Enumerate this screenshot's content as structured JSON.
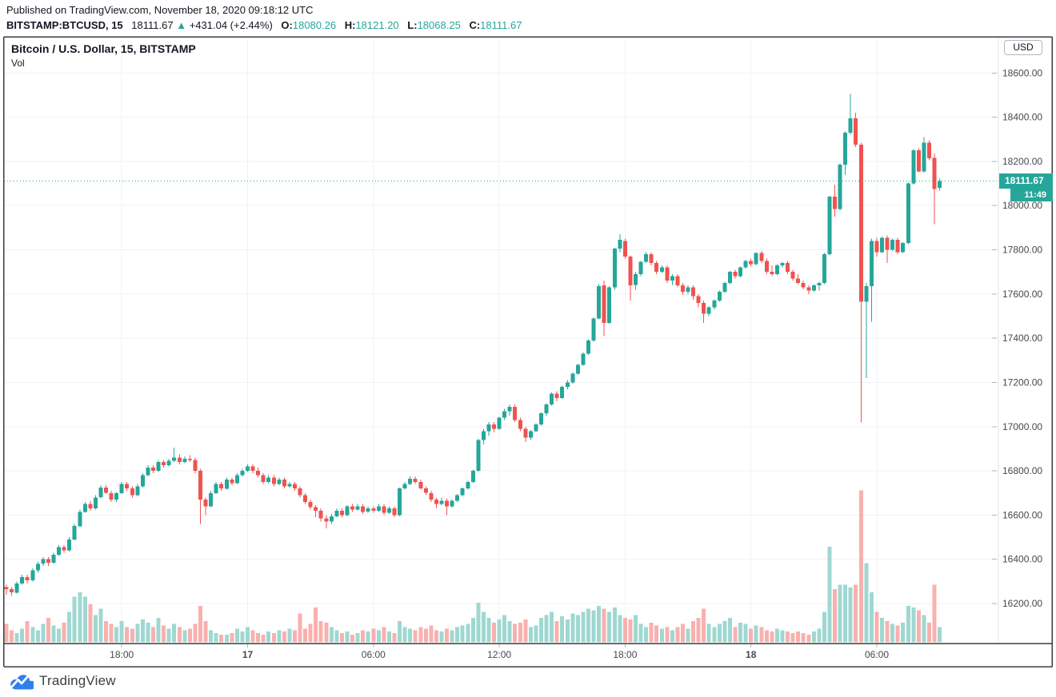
{
  "header": {
    "published": "Published on TradingView.com, November 18, 2020 09:18:12 UTC",
    "quote": {
      "symbol": "BITSTAMP:BTCUSD, 15",
      "last": "18111.67",
      "arrow": "▲",
      "change": "+431.04 (+2.44%)",
      "o_label": "O:",
      "o": "18080.26",
      "h_label": "H:",
      "h": "18121.20",
      "l_label": "L:",
      "l": "18068.25",
      "c_label": "C:",
      "c": "18111.67"
    }
  },
  "chart": {
    "title": "Bitcoin / U.S. Dollar, 15, BITSTAMP",
    "indicator_label": "Vol",
    "currency_badge": "USD",
    "price_label": "18111.67",
    "countdown": "11:49"
  },
  "footer": {
    "logo_text": "TradingView"
  },
  "colors": {
    "up": "#26a69a",
    "down": "#ef5350",
    "vol_up": "#9fd8d2",
    "vol_down": "#f8b1af",
    "accent": "#26a69a",
    "grid": "#f1f2f6",
    "frame": "#3d3d3d",
    "axis_sep": "#e0e3eb",
    "axis_text": "#44484f",
    "tick": "#b2b5be"
  },
  "chart_data": {
    "type": "candlestick+volume",
    "symbol": "BITSTAMP:BTCUSD",
    "interval_minutes": 15,
    "last_price": 18111.67,
    "price_axis": {
      "min": 16023,
      "max": 18760
    },
    "y_ticks": [
      "18600.00",
      "18400.00",
      "18200.00",
      "18000.00",
      "17800.00",
      "17600.00",
      "17400.00",
      "17200.00",
      "17000.00",
      "16800.00",
      "16600.00",
      "16400.00",
      "16200.00"
    ],
    "x_ticks": [
      {
        "index": 22,
        "label": "18:00",
        "emphasis": false
      },
      {
        "index": 46,
        "label": "17",
        "emphasis": true
      },
      {
        "index": 70,
        "label": "06:00",
        "emphasis": false
      },
      {
        "index": 94,
        "label": "12:00",
        "emphasis": false
      },
      {
        "index": 118,
        "label": "18:00",
        "emphasis": false
      },
      {
        "index": 142,
        "label": "18",
        "emphasis": true
      },
      {
        "index": 166,
        "label": "06:00",
        "emphasis": false
      }
    ],
    "candles_format": [
      "open",
      "high",
      "low",
      "close",
      "relative_volume"
    ],
    "candles": [
      [
        16275,
        16285,
        16240,
        16265,
        12
      ],
      [
        16265,
        16275,
        16235,
        16250,
        8
      ],
      [
        16250,
        16300,
        16245,
        16290,
        6
      ],
      [
        16290,
        16330,
        16285,
        16320,
        9
      ],
      [
        16320,
        16330,
        16290,
        16305,
        14
      ],
      [
        16305,
        16360,
        16300,
        16350,
        10
      ],
      [
        16350,
        16390,
        16340,
        16380,
        8
      ],
      [
        16380,
        16410,
        16370,
        16400,
        12
      ],
      [
        16400,
        16410,
        16370,
        16385,
        16
      ],
      [
        16385,
        16430,
        16380,
        16420,
        11
      ],
      [
        16420,
        16465,
        16415,
        16455,
        9
      ],
      [
        16455,
        16465,
        16430,
        16440,
        13
      ],
      [
        16440,
        16500,
        16435,
        16490,
        20
      ],
      [
        16490,
        16560,
        16485,
        16550,
        30
      ],
      [
        16550,
        16625,
        16545,
        16615,
        33
      ],
      [
        16615,
        16660,
        16610,
        16650,
        30
      ],
      [
        16650,
        16665,
        16620,
        16630,
        25
      ],
      [
        16630,
        16690,
        16625,
        16680,
        18
      ],
      [
        16680,
        16735,
        16675,
        16725,
        22
      ],
      [
        16725,
        16735,
        16695,
        16700,
        14
      ],
      [
        16700,
        16710,
        16660,
        16670,
        12
      ],
      [
        16670,
        16705,
        16660,
        16700,
        10
      ],
      [
        16700,
        16750,
        16695,
        16740,
        14
      ],
      [
        16740,
        16750,
        16710,
        16720,
        10
      ],
      [
        16720,
        16730,
        16680,
        16690,
        9
      ],
      [
        16690,
        16740,
        16685,
        16730,
        12
      ],
      [
        16730,
        16790,
        16725,
        16780,
        15
      ],
      [
        16780,
        16825,
        16775,
        16815,
        13
      ],
      [
        16815,
        16825,
        16790,
        16800,
        10
      ],
      [
        16800,
        16850,
        16795,
        16840,
        16
      ],
      [
        16840,
        16850,
        16815,
        16825,
        11
      ],
      [
        16825,
        16855,
        16820,
        16845,
        9
      ],
      [
        16845,
        16905,
        16840,
        16860,
        12
      ],
      [
        16860,
        16875,
        16830,
        16840,
        10
      ],
      [
        16840,
        16865,
        16835,
        16855,
        8
      ],
      [
        16855,
        16870,
        16840,
        16850,
        9
      ],
      [
        16850,
        16860,
        16790,
        16800,
        12
      ],
      [
        16800,
        16810,
        16560,
        16670,
        24
      ],
      [
        16670,
        16680,
        16600,
        16640,
        14
      ],
      [
        16640,
        16710,
        16635,
        16700,
        8
      ],
      [
        16700,
        16750,
        16695,
        16740,
        6
      ],
      [
        16740,
        16750,
        16710,
        16720,
        5
      ],
      [
        16720,
        16770,
        16715,
        16760,
        5
      ],
      [
        16760,
        16770,
        16735,
        16745,
        6
      ],
      [
        16745,
        16790,
        16740,
        16780,
        9
      ],
      [
        16780,
        16810,
        16775,
        16800,
        7
      ],
      [
        16800,
        16830,
        16795,
        16820,
        10
      ],
      [
        16820,
        16830,
        16790,
        16800,
        8
      ],
      [
        16800,
        16815,
        16770,
        16780,
        6
      ],
      [
        16780,
        16790,
        16740,
        16750,
        5
      ],
      [
        16750,
        16780,
        16745,
        16770,
        7
      ],
      [
        16770,
        16780,
        16730,
        16740,
        6
      ],
      [
        16740,
        16770,
        16735,
        16760,
        8
      ],
      [
        16760,
        16770,
        16720,
        16730,
        7
      ],
      [
        16730,
        16750,
        16725,
        16740,
        9
      ],
      [
        16740,
        16750,
        16710,
        16720,
        8
      ],
      [
        16720,
        16730,
        16680,
        16690,
        19
      ],
      [
        16690,
        16700,
        16650,
        16660,
        9
      ],
      [
        16660,
        16670,
        16625,
        16635,
        12
      ],
      [
        16635,
        16645,
        16590,
        16620,
        23
      ],
      [
        16620,
        16630,
        16570,
        16585,
        14
      ],
      [
        16585,
        16600,
        16540,
        16570,
        13
      ],
      [
        16570,
        16605,
        16560,
        16595,
        10
      ],
      [
        16595,
        16630,
        16590,
        16620,
        8
      ],
      [
        16620,
        16630,
        16590,
        16600,
        6
      ],
      [
        16600,
        16645,
        16595,
        16640,
        7
      ],
      [
        16640,
        16650,
        16615,
        16625,
        5
      ],
      [
        16625,
        16650,
        16620,
        16640,
        6
      ],
      [
        16640,
        16650,
        16605,
        16615,
        8
      ],
      [
        16615,
        16640,
        16610,
        16630,
        7
      ],
      [
        16630,
        16640,
        16610,
        16620,
        9
      ],
      [
        16620,
        16650,
        16615,
        16640,
        8
      ],
      [
        16640,
        16650,
        16600,
        16610,
        10
      ],
      [
        16610,
        16640,
        16605,
        16630,
        7
      ],
      [
        16630,
        16640,
        16590,
        16600,
        6
      ],
      [
        16600,
        16725,
        16595,
        16720,
        14
      ],
      [
        16720,
        16750,
        16715,
        16740,
        10
      ],
      [
        16740,
        16775,
        16735,
        16765,
        9
      ],
      [
        16765,
        16775,
        16740,
        16750,
        8
      ],
      [
        16750,
        16760,
        16715,
        16720,
        10
      ],
      [
        16720,
        16730,
        16690,
        16700,
        9
      ],
      [
        16700,
        16710,
        16660,
        16670,
        11
      ],
      [
        16670,
        16680,
        16630,
        16650,
        8
      ],
      [
        16650,
        16680,
        16645,
        16665,
        7
      ],
      [
        16665,
        16675,
        16600,
        16640,
        9
      ],
      [
        16640,
        16670,
        16635,
        16665,
        8
      ],
      [
        16665,
        16695,
        16660,
        16690,
        10
      ],
      [
        16690,
        16725,
        16685,
        16720,
        11
      ],
      [
        16720,
        16755,
        16715,
        16750,
        12
      ],
      [
        16750,
        16805,
        16745,
        16800,
        16
      ],
      [
        16800,
        16945,
        16795,
        16940,
        26
      ],
      [
        16940,
        16990,
        16920,
        16980,
        20
      ],
      [
        16980,
        17020,
        16960,
        17010,
        16
      ],
      [
        17010,
        17020,
        16975,
        16990,
        13
      ],
      [
        16990,
        17045,
        16985,
        17040,
        15
      ],
      [
        17040,
        17080,
        17030,
        17070,
        18
      ],
      [
        17070,
        17100,
        17050,
        17090,
        14
      ],
      [
        17090,
        17100,
        17020,
        17030,
        12
      ],
      [
        17030,
        17040,
        16980,
        16990,
        13
      ],
      [
        16990,
        17000,
        16930,
        16950,
        15
      ],
      [
        16950,
        16985,
        16940,
        16980,
        10
      ],
      [
        16980,
        17015,
        16975,
        17010,
        11
      ],
      [
        17010,
        17065,
        17005,
        17060,
        16
      ],
      [
        17060,
        17105,
        17050,
        17100,
        18
      ],
      [
        17100,
        17155,
        17095,
        17150,
        20
      ],
      [
        17150,
        17160,
        17115,
        17130,
        14
      ],
      [
        17130,
        17185,
        17125,
        17180,
        17
      ],
      [
        17180,
        17210,
        17170,
        17200,
        15
      ],
      [
        17200,
        17245,
        17195,
        17240,
        19
      ],
      [
        17240,
        17285,
        17235,
        17280,
        18
      ],
      [
        17280,
        17335,
        17275,
        17330,
        20
      ],
      [
        17330,
        17395,
        17325,
        17390,
        22
      ],
      [
        17390,
        17495,
        17385,
        17490,
        21
      ],
      [
        17490,
        17645,
        17485,
        17635,
        24
      ],
      [
        17640,
        17660,
        17410,
        17470,
        22
      ],
      [
        17470,
        17635,
        17465,
        17630,
        20
      ],
      [
        17630,
        17810,
        17620,
        17805,
        23
      ],
      [
        17805,
        17870,
        17790,
        17845,
        18
      ],
      [
        17840,
        17850,
        17760,
        17770,
        16
      ],
      [
        17770,
        17775,
        17570,
        17640,
        15
      ],
      [
        17640,
        17700,
        17620,
        17690,
        18
      ],
      [
        17690,
        17750,
        17680,
        17745,
        12
      ],
      [
        17745,
        17790,
        17740,
        17780,
        10
      ],
      [
        17780,
        17790,
        17730,
        17740,
        13
      ],
      [
        17740,
        17750,
        17690,
        17700,
        11
      ],
      [
        17700,
        17730,
        17695,
        17720,
        9
      ],
      [
        17720,
        17730,
        17650,
        17660,
        10
      ],
      [
        17660,
        17690,
        17640,
        17680,
        8
      ],
      [
        17680,
        17690,
        17630,
        17640,
        10
      ],
      [
        17640,
        17650,
        17595,
        17610,
        12
      ],
      [
        17610,
        17640,
        17600,
        17630,
        9
      ],
      [
        17630,
        17640,
        17575,
        17590,
        14
      ],
      [
        17590,
        17600,
        17540,
        17560,
        16
      ],
      [
        17560,
        17570,
        17470,
        17510,
        22
      ],
      [
        17510,
        17545,
        17500,
        17540,
        12
      ],
      [
        17540,
        17575,
        17530,
        17570,
        10
      ],
      [
        17570,
        17615,
        17565,
        17610,
        12
      ],
      [
        17610,
        17655,
        17605,
        17650,
        14
      ],
      [
        17650,
        17705,
        17645,
        17700,
        16
      ],
      [
        17700,
        17710,
        17670,
        17680,
        10
      ],
      [
        17680,
        17725,
        17675,
        17720,
        13
      ],
      [
        17720,
        17755,
        17715,
        17750,
        12
      ],
      [
        17750,
        17760,
        17725,
        17735,
        9
      ],
      [
        17735,
        17790,
        17730,
        17785,
        11
      ],
      [
        17785,
        17795,
        17740,
        17750,
        10
      ],
      [
        17750,
        17760,
        17690,
        17700,
        8
      ],
      [
        17700,
        17730,
        17680,
        17690,
        7
      ],
      [
        17690,
        17735,
        17685,
        17730,
        9
      ],
      [
        17730,
        17745,
        17720,
        17740,
        8
      ],
      [
        17740,
        17750,
        17690,
        17700,
        7
      ],
      [
        17700,
        17710,
        17660,
        17670,
        6
      ],
      [
        17670,
        17690,
        17645,
        17650,
        7
      ],
      [
        17650,
        17660,
        17620,
        17630,
        6
      ],
      [
        17630,
        17640,
        17600,
        17615,
        5
      ],
      [
        17615,
        17645,
        17610,
        17640,
        7
      ],
      [
        17640,
        17655,
        17615,
        17650,
        9
      ],
      [
        17650,
        17785,
        17645,
        17780,
        20
      ],
      [
        17780,
        18045,
        17775,
        18040,
        63
      ],
      [
        18040,
        18095,
        17950,
        17985,
        35
      ],
      [
        17985,
        18190,
        17980,
        18185,
        38
      ],
      [
        18185,
        18335,
        18140,
        18330,
        38
      ],
      [
        18330,
        18505,
        18320,
        18395,
        36
      ],
      [
        18395,
        18420,
        18265,
        18275,
        38
      ],
      [
        18275,
        18285,
        17020,
        17565,
        100
      ],
      [
        17565,
        17650,
        17220,
        17635,
        52
      ],
      [
        17635,
        17850,
        17475,
        17840,
        33
      ],
      [
        17840,
        17855,
        17770,
        17790,
        20
      ],
      [
        17790,
        17860,
        17785,
        17855,
        16
      ],
      [
        17855,
        17865,
        17740,
        17800,
        14
      ],
      [
        17800,
        17850,
        17795,
        17845,
        12
      ],
      [
        17845,
        17855,
        17780,
        17790,
        11
      ],
      [
        17790,
        17835,
        17785,
        17830,
        13
      ],
      [
        17830,
        18105,
        17825,
        18100,
        24
      ],
      [
        18100,
        18255,
        18095,
        18250,
        23
      ],
      [
        18250,
        18260,
        18150,
        18155,
        21
      ],
      [
        18155,
        18310,
        18150,
        18285,
        18
      ],
      [
        18285,
        18295,
        18205,
        18215,
        13
      ],
      [
        18215,
        18235,
        17915,
        18075,
        38
      ],
      [
        18080.26,
        18121.2,
        18068.25,
        18111.67,
        10
      ]
    ]
  }
}
